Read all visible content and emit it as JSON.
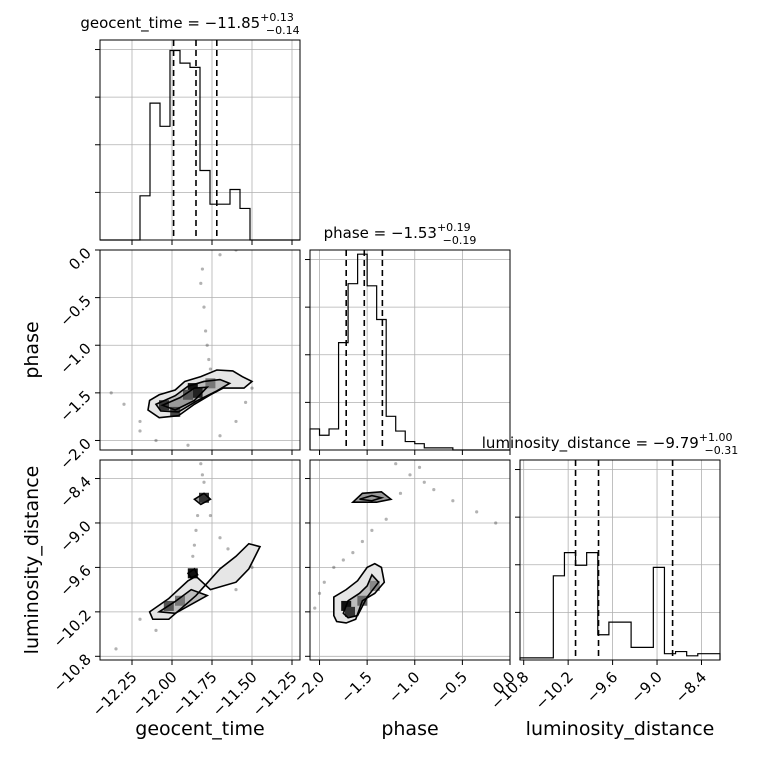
{
  "chart_data": {
    "type": "scatter",
    "parameters": [
      {
        "name": "geocent_time",
        "range": [
          -12.45,
          -11.2
        ],
        "ticks": [
          -12.25,
          -12.0,
          -11.75,
          -11.5,
          -11.25
        ],
        "tick_labels": [
          "−12.25",
          "−12.00",
          "−11.75",
          "−11.50",
          "−11.25"
        ],
        "title_prefix": "geocent_time = −11.85",
        "title_sup": "+0.13",
        "title_sub": "−0.14",
        "quantiles": [
          -11.99,
          -11.85,
          -11.72
        ],
        "hist": {
          "edges": [
            -12.45,
            -12.3875,
            -12.325,
            -12.2625,
            -12.2,
            -12.1375,
            -12.075,
            -12.0125,
            -11.95,
            -11.8875,
            -11.825,
            -11.7625,
            -11.7,
            -11.6375,
            -11.575,
            -11.5125,
            -11.45,
            -11.3875,
            -11.325,
            -11.2625,
            -11.2
          ],
          "values": [
            0,
            0,
            0,
            0,
            0.21,
            0.65,
            0.54,
            0.9,
            0.84,
            0.82,
            0.33,
            0.17,
            0.17,
            0.24,
            0.15,
            0,
            0,
            0,
            0,
            0
          ]
        }
      },
      {
        "name": "phase",
        "range": [
          -2.1,
          0.0
        ],
        "ticks": [
          -2.0,
          -1.5,
          -1.0,
          -0.5,
          0.0
        ],
        "tick_labels": [
          "−2.0",
          "−1.5",
          "−1.0",
          "−0.5",
          "0.0"
        ],
        "title_prefix": "phase = −1.53",
        "title_sup": "+0.19",
        "title_sub": "−0.19",
        "quantiles": [
          -1.72,
          -1.53,
          -1.34
        ],
        "hist": {
          "edges": [
            -2.1,
            -2.0,
            -1.9,
            -1.8,
            -1.7,
            -1.6,
            -1.5,
            -1.4,
            -1.3,
            -1.2,
            -1.1,
            -1.0,
            -0.9,
            -0.8,
            -0.7,
            -0.6,
            -0.5,
            -0.4,
            -0.3,
            -0.2,
            -0.1,
            0.0
          ],
          "values": [
            0.1,
            0.07,
            0.1,
            0.51,
            0.79,
            0.93,
            0.78,
            0.62,
            0.16,
            0.09,
            0.04,
            0.03,
            0.01,
            0.01,
            0.01,
            0,
            0,
            0,
            0,
            0,
            0
          ]
        }
      },
      {
        "name": "luminosity_distance",
        "range": [
          -10.85,
          -8.15
        ],
        "ticks": [
          -10.8,
          -10.2,
          -9.6,
          -9.0,
          -8.4
        ],
        "tick_labels": [
          "−10.8",
          "−10.2",
          "−9.6",
          "−9.0",
          "−8.4"
        ],
        "title_prefix": "luminosity_distance = −9.79",
        "title_sup": "+1.00",
        "title_sub": "−0.31",
        "quantiles": [
          -10.1,
          -9.79,
          -8.79
        ],
        "hist": {
          "edges": [
            -10.85,
            -10.7,
            -10.55,
            -10.4,
            -10.25,
            -10.1,
            -9.95,
            -9.8,
            -9.65,
            -9.5,
            -9.35,
            -9.2,
            -9.05,
            -8.9,
            -8.75,
            -8.6,
            -8.45,
            -8.3,
            -8.15
          ],
          "values": [
            0.01,
            0.01,
            0.01,
            0.4,
            0.51,
            0.45,
            0.51,
            0.12,
            0.18,
            0.18,
            0.06,
            0.06,
            0.44,
            0.03,
            0.04,
            0.02,
            0.03,
            0.03
          ]
        }
      }
    ],
    "scatter_2d": [
      {
        "x_param": "geocent_time",
        "y_param": "phase",
        "contours": [
          [
            [
              -12.14,
              -1.58
            ],
            [
              -12.08,
              -1.52
            ],
            [
              -11.98,
              -1.47
            ],
            [
              -11.92,
              -1.38
            ],
            [
              -11.82,
              -1.33
            ],
            [
              -11.72,
              -1.26
            ],
            [
              -11.62,
              -1.27
            ],
            [
              -11.56,
              -1.33
            ],
            [
              -11.5,
              -1.38
            ],
            [
              -11.55,
              -1.45
            ],
            [
              -11.68,
              -1.45
            ],
            [
              -11.76,
              -1.52
            ],
            [
              -11.86,
              -1.62
            ],
            [
              -11.96,
              -1.74
            ],
            [
              -12.08,
              -1.76
            ],
            [
              -12.15,
              -1.68
            ]
          ],
          [
            [
              -12.1,
              -1.62
            ],
            [
              -11.98,
              -1.53
            ],
            [
              -11.9,
              -1.43
            ],
            [
              -11.8,
              -1.38
            ],
            [
              -11.7,
              -1.36
            ],
            [
              -11.64,
              -1.4
            ],
            [
              -11.72,
              -1.48
            ],
            [
              -11.84,
              -1.58
            ],
            [
              -11.96,
              -1.7
            ],
            [
              -12.07,
              -1.69
            ]
          ],
          [
            [
              -12.06,
              -1.63
            ],
            [
              -11.95,
              -1.55
            ],
            [
              -11.86,
              -1.45
            ],
            [
              -11.78,
              -1.44
            ],
            [
              -11.86,
              -1.58
            ],
            [
              -11.98,
              -1.68
            ]
          ]
        ],
        "density_blocks": [
          {
            "x": -11.87,
            "y": -1.45,
            "shade": "#111111"
          },
          {
            "x": -11.84,
            "y": -1.5,
            "shade": "#222222"
          },
          {
            "x": -12.05,
            "y": -1.63,
            "shade": "#333333"
          },
          {
            "x": -11.98,
            "y": -1.7,
            "shade": "#444444"
          },
          {
            "x": -11.76,
            "y": -1.4,
            "shade": "#777777"
          },
          {
            "x": -11.9,
            "y": -1.52,
            "shade": "#555555"
          }
        ],
        "scatter_points": [
          [
            -11.82,
            -0.35
          ],
          [
            -11.8,
            -0.6
          ],
          [
            -11.79,
            -0.85
          ],
          [
            -11.78,
            -1.0
          ],
          [
            -11.77,
            -1.15
          ],
          [
            -11.76,
            -1.25
          ],
          [
            -11.81,
            -0.2
          ],
          [
            -11.7,
            -0.05
          ],
          [
            -11.6,
            0.0
          ],
          [
            -12.2,
            -1.9
          ],
          [
            -12.1,
            -2.0
          ],
          [
            -11.9,
            -2.05
          ],
          [
            -11.7,
            -1.95
          ],
          [
            -11.6,
            -1.8
          ],
          [
            -11.54,
            -1.6
          ],
          [
            -11.5,
            -1.45
          ],
          [
            -12.3,
            -1.62
          ],
          [
            -12.2,
            -1.8
          ],
          [
            -12.38,
            -1.5
          ]
        ]
      },
      {
        "x_param": "geocent_time",
        "y_param": "luminosity_distance",
        "contours": [
          [
            [
              -12.14,
              -10.2
            ],
            [
              -12.02,
              -10.02
            ],
            [
              -11.9,
              -9.78
            ],
            [
              -11.85,
              -9.72
            ],
            [
              -11.76,
              -9.9
            ],
            [
              -11.6,
              -9.8
            ],
            [
              -11.52,
              -9.62
            ],
            [
              -11.48,
              -9.45
            ],
            [
              -11.45,
              -9.32
            ],
            [
              -11.52,
              -9.28
            ],
            [
              -11.6,
              -9.45
            ],
            [
              -11.7,
              -9.62
            ],
            [
              -11.85,
              -9.98
            ],
            [
              -12.02,
              -10.3
            ],
            [
              -12.12,
              -10.3
            ]
          ],
          [
            [
              -12.08,
              -10.2
            ],
            [
              -11.98,
              -10.06
            ],
            [
              -11.88,
              -9.9
            ],
            [
              -11.78,
              -9.98
            ],
            [
              -11.98,
              -10.22
            ]
          ],
          [
            [
              -11.86,
              -8.68
            ],
            [
              -11.8,
              -8.6
            ],
            [
              -11.76,
              -8.68
            ],
            [
              -11.82,
              -8.75
            ]
          ],
          [
            [
              -11.9,
              -9.68
            ],
            [
              -11.86,
              -9.62
            ],
            [
              -11.84,
              -9.7
            ],
            [
              -11.88,
              -9.74
            ]
          ]
        ],
        "density_blocks": [
          {
            "x": -11.87,
            "y": -9.68,
            "shade": "#111111"
          },
          {
            "x": -12.02,
            "y": -10.12,
            "shade": "#555555"
          },
          {
            "x": -11.95,
            "y": -10.05,
            "shade": "#777777"
          },
          {
            "x": -11.8,
            "y": -8.66,
            "shade": "#333333"
          }
        ],
        "scatter_points": [
          [
            -11.82,
            -8.2
          ],
          [
            -11.81,
            -8.35
          ],
          [
            -11.8,
            -8.45
          ],
          [
            -11.84,
            -8.9
          ],
          [
            -11.85,
            -9.1
          ],
          [
            -11.86,
            -9.3
          ],
          [
            -11.87,
            -9.45
          ],
          [
            -11.76,
            -8.9
          ],
          [
            -11.7,
            -9.2
          ],
          [
            -11.65,
            -9.35
          ],
          [
            -11.5,
            -9.6
          ],
          [
            -12.2,
            -10.3
          ],
          [
            -12.35,
            -10.7
          ],
          [
            -12.1,
            -10.45
          ],
          [
            -11.6,
            -9.9
          ]
        ]
      },
      {
        "x_param": "phase",
        "y_param": "luminosity_distance",
        "contours": [
          [
            [
              -1.85,
              -10.25
            ],
            [
              -1.85,
              -10.0
            ],
            [
              -1.72,
              -9.9
            ],
            [
              -1.6,
              -9.78
            ],
            [
              -1.5,
              -9.6
            ],
            [
              -1.42,
              -9.55
            ],
            [
              -1.35,
              -9.6
            ],
            [
              -1.32,
              -9.8
            ],
            [
              -1.42,
              -9.95
            ],
            [
              -1.55,
              -10.05
            ],
            [
              -1.62,
              -10.3
            ],
            [
              -1.72,
              -10.35
            ],
            [
              -1.82,
              -10.33
            ]
          ],
          [
            [
              -1.75,
              -10.22
            ],
            [
              -1.7,
              -10.05
            ],
            [
              -1.58,
              -9.95
            ],
            [
              -1.5,
              -9.85
            ],
            [
              -1.45,
              -9.7
            ],
            [
              -1.38,
              -9.8
            ],
            [
              -1.5,
              -10.0
            ],
            [
              -1.6,
              -10.25
            ],
            [
              -1.7,
              -10.28
            ]
          ],
          [
            [
              -1.65,
              -8.72
            ],
            [
              -1.55,
              -8.6
            ],
            [
              -1.35,
              -8.58
            ],
            [
              -1.25,
              -8.68
            ],
            [
              -1.4,
              -8.72
            ]
          ],
          [
            [
              -1.58,
              -8.68
            ],
            [
              -1.45,
              -8.63
            ],
            [
              -1.35,
              -8.66
            ],
            [
              -1.45,
              -8.7
            ]
          ]
        ],
        "density_blocks": [
          {
            "x": -1.72,
            "y": -10.12,
            "shade": "#111111"
          },
          {
            "x": -1.68,
            "y": -10.2,
            "shade": "#333333"
          },
          {
            "x": -1.55,
            "y": -10.05,
            "shade": "#666666"
          },
          {
            "x": -1.42,
            "y": -9.85,
            "shade": "#888888"
          }
        ],
        "scatter_points": [
          [
            -2.05,
            -10.15
          ],
          [
            -2.0,
            -9.95
          ],
          [
            -1.95,
            -9.8
          ],
          [
            -1.85,
            -9.6
          ],
          [
            -1.75,
            -9.5
          ],
          [
            -1.65,
            -9.4
          ],
          [
            -1.55,
            -9.25
          ],
          [
            -1.45,
            -9.1
          ],
          [
            -1.3,
            -8.95
          ],
          [
            -1.15,
            -8.6
          ],
          [
            -1.05,
            -8.35
          ],
          [
            -0.95,
            -8.25
          ],
          [
            -0.8,
            -8.55
          ],
          [
            -0.6,
            -8.7
          ],
          [
            -0.35,
            -8.85
          ],
          [
            -0.15,
            -9.0
          ],
          [
            -1.2,
            -8.2
          ],
          [
            -0.9,
            -8.45
          ]
        ]
      }
    ]
  }
}
